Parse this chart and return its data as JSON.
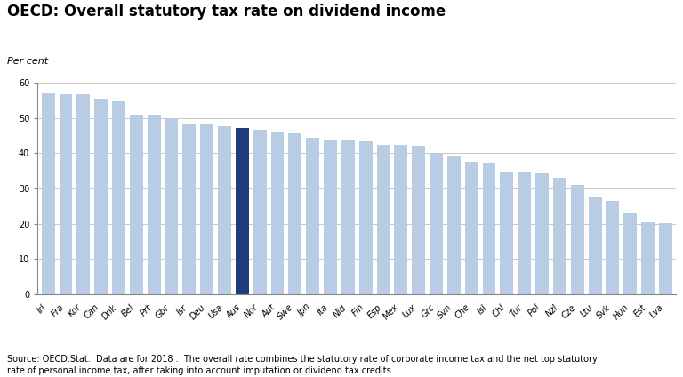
{
  "title": "OECD: Overall statutory tax rate on dividend income",
  "ylabel": "Per cent",
  "categories": [
    "Irl",
    "Fra",
    "Kor",
    "Can",
    "Dnk",
    "Bel",
    "Prt",
    "Gbr",
    "Isr",
    "Deu",
    "Usa",
    "Aus",
    "Nor",
    "Aut",
    "Swe",
    "Jpn",
    "Ita",
    "Nld",
    "Fin",
    "Esp",
    "Mex",
    "Lux",
    "Grc",
    "Svn",
    "Che",
    "Isl",
    "Chl",
    "Tur",
    "Pol",
    "Nzl",
    "Cze",
    "Ltu",
    "Svk",
    "Hun",
    "Est",
    "Lva"
  ],
  "values": [
    57.0,
    56.8,
    56.7,
    55.6,
    54.8,
    50.9,
    50.9,
    49.9,
    48.4,
    48.5,
    47.6,
    47.1,
    46.8,
    45.9,
    45.7,
    44.3,
    43.7,
    43.6,
    43.4,
    42.5,
    42.3,
    42.1,
    39.8,
    39.3,
    37.7,
    37.4,
    34.9,
    34.8,
    34.4,
    33.1,
    30.9,
    27.5,
    26.4,
    22.8,
    20.3,
    20.1
  ],
  "highlight_index": 11,
  "bar_color": "#b8cce4",
  "highlight_color": "#1f3d7a",
  "ylim": [
    0,
    60
  ],
  "yticks": [
    0,
    10,
    20,
    30,
    40,
    50,
    60
  ],
  "footnote": "Source: OECD.Stat.  Data are for 2018 .  The overall rate combines the statutory rate of corporate income tax and the net top statutory\nrate of personal income tax, after taking into account imputation or dividend tax credits.",
  "title_fontsize": 12,
  "ylabel_fontsize": 8,
  "tick_fontsize": 7,
  "footnote_fontsize": 7,
  "background_color": "#ffffff"
}
